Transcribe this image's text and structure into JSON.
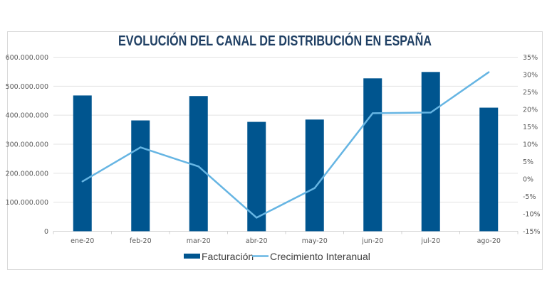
{
  "chart_data": {
    "type": "bar+line",
    "title": "EVOLUCIÓN DEL CANAL DE DISTRIBUCIÓN EN ESPAÑA",
    "categories": [
      "ene-20",
      "feb-20",
      "mar-20",
      "abr-20",
      "may-20",
      "jun-20",
      "jul-20",
      "ago-20"
    ],
    "series": [
      {
        "name": "Facturación",
        "type": "bar",
        "axis": "left",
        "color": "#00558f",
        "values": [
          468000000,
          382000000,
          466000000,
          377000000,
          385000000,
          527000000,
          549000000,
          426000000
        ]
      },
      {
        "name": "Crecimiento Interanual",
        "type": "line",
        "axis": "right",
        "color": "#66b5e3",
        "values": [
          -0.7,
          9.1,
          3.6,
          -11.1,
          -2.6,
          18.9,
          19.1,
          30.7
        ]
      }
    ],
    "left_axis": {
      "ylim": [
        0,
        600000000
      ],
      "tick_labels": [
        "0",
        "100.000.000",
        "200.000.000",
        "300.000.000",
        "400.000.000",
        "500.000.000",
        "600.000.000"
      ]
    },
    "right_axis": {
      "ylim": [
        -15,
        35
      ],
      "unit": "%",
      "tick_labels": [
        "-15%",
        "-10%",
        "-5%",
        "0%",
        "5%",
        "10%",
        "15%",
        "20%",
        "25%",
        "30%",
        "35%"
      ]
    },
    "grid": true,
    "legend_position": "bottom"
  }
}
